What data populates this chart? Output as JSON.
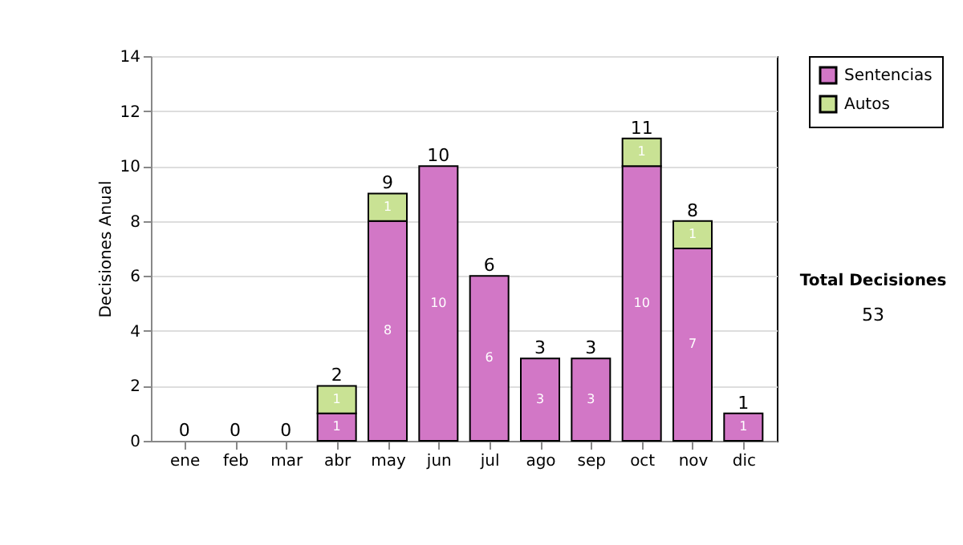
{
  "chart_data": {
    "type": "bar",
    "stacked": true,
    "ylabel": "Decisiones Anual",
    "categories": [
      "ene",
      "feb",
      "mar",
      "abr",
      "may",
      "jun",
      "jul",
      "ago",
      "sep",
      "oct",
      "nov",
      "dic"
    ],
    "series": [
      {
        "name": "Sentencias",
        "color": "#d277c6",
        "values": [
          0,
          0,
          0,
          1,
          8,
          10,
          6,
          3,
          3,
          10,
          7,
          1
        ],
        "value_labels": [
          null,
          null,
          null,
          "1",
          "8",
          "10",
          "6",
          "3",
          "3",
          "10",
          "7",
          "1"
        ]
      },
      {
        "name": "Autos",
        "color": "#c9e294",
        "values": [
          0,
          0,
          0,
          1,
          1,
          0,
          0,
          0,
          0,
          1,
          1,
          0
        ],
        "value_labels": [
          null,
          null,
          null,
          "1",
          "1",
          null,
          null,
          null,
          null,
          "1",
          "1",
          null
        ]
      }
    ],
    "totals": [
      "0",
      "0",
      "0",
      "2",
      "9",
      "10",
      "6",
      "3",
      "3",
      "11",
      "8",
      "1"
    ],
    "ylim": [
      0,
      14
    ],
    "yticks": [
      0,
      2,
      4,
      6,
      8,
      10,
      12,
      14
    ],
    "grid": "y",
    "legend": "right",
    "annotations": [
      "Total Decisiones",
      "53"
    ]
  }
}
